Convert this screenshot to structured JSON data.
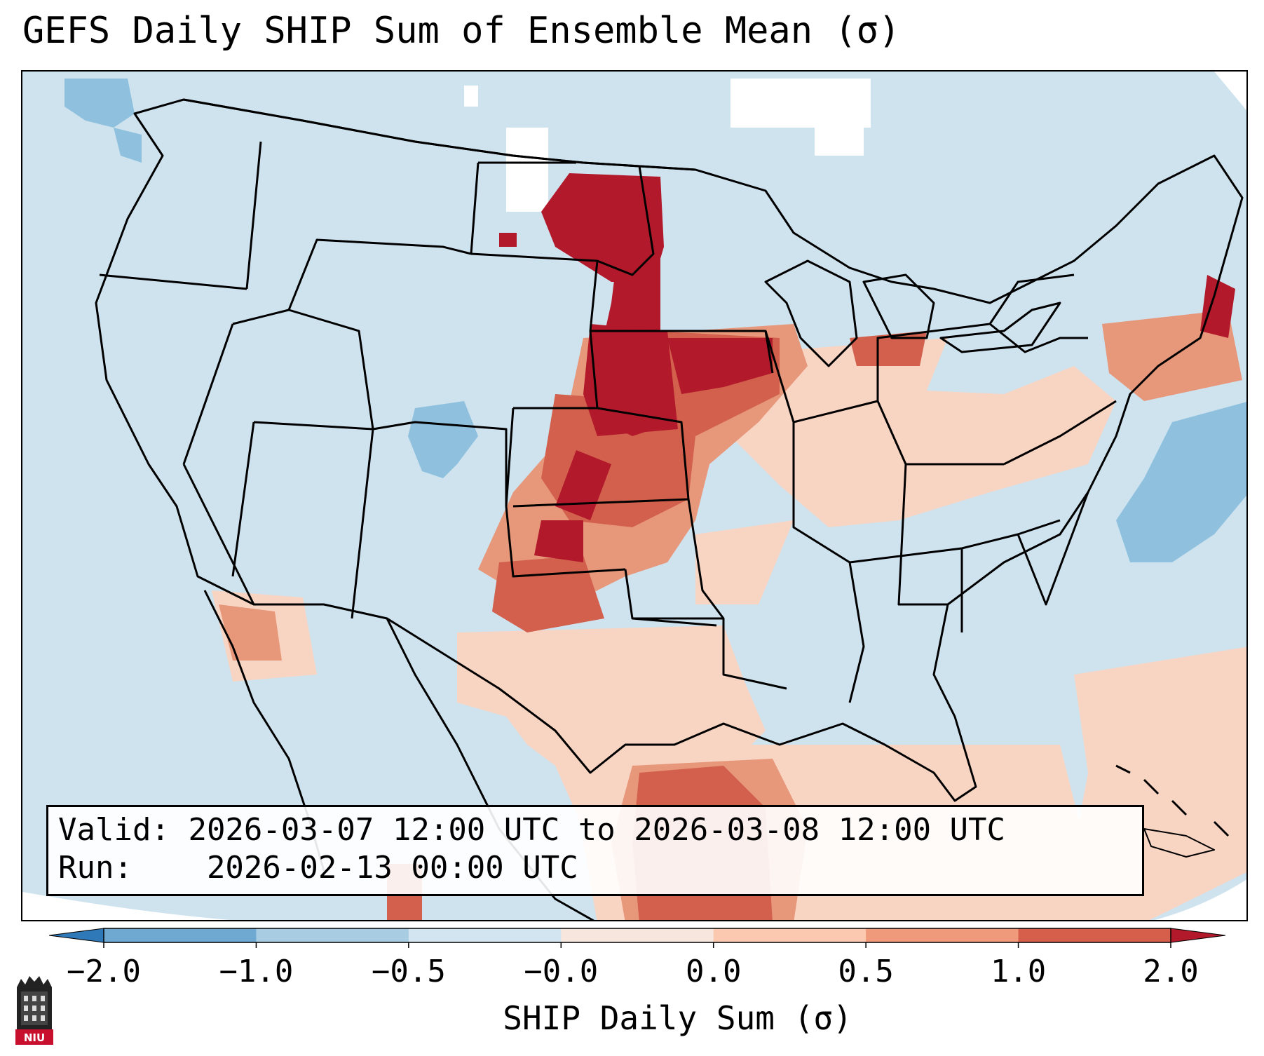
{
  "title": "GEFS Daily SHIP Sum of Ensemble Mean (σ)",
  "info": {
    "valid_label": "Valid:",
    "valid_value": "2026-03-07 12:00 UTC to 2026-03-08 12:00 UTC",
    "run_label": "Run:",
    "run_value": "2026-02-13 00:00 UTC"
  },
  "colorbar": {
    "label": "SHIP Daily Sum (σ)",
    "tick_labels": [
      "−2.0",
      "−1.0",
      "−0.5",
      "−0.0",
      "0.0",
      "0.5",
      "1.0",
      "2.0"
    ],
    "colors": [
      "#2f79b8",
      "#6fa9d2",
      "#a8cde3",
      "#d3e5f0",
      "#f7e6dd",
      "#fbc8b0",
      "#ef9a7a",
      "#d65f4c",
      "#b2192b"
    ],
    "extend": "both"
  },
  "logo": {
    "text": "NIU"
  },
  "map": {
    "background_color": "#cfe3ef",
    "outside_domain_color": "#ffffff",
    "anomaly_regions": [
      {
        "name": "dakotas-core",
        "level": "strong-positive",
        "color": "#b2192b"
      },
      {
        "name": "plains-corridor",
        "level": "strong-positive",
        "color": "#b2192b"
      },
      {
        "name": "iowa-core",
        "level": "strong-positive",
        "color": "#b2192b"
      },
      {
        "name": "oklahoma-core",
        "level": "strong-positive",
        "color": "#b2192b"
      },
      {
        "name": "kansas-moderate",
        "level": "positive",
        "color": "#d65f4c"
      },
      {
        "name": "gulf-coast-moderate",
        "level": "positive",
        "color": "#d65f4c"
      },
      {
        "name": "new-england-core",
        "level": "strong-positive",
        "color": "#b2192b"
      },
      {
        "name": "texas-weak",
        "level": "weak-positive",
        "color": "#f7d0bd"
      },
      {
        "name": "southeast-weak",
        "level": "weak-positive",
        "color": "#f7d0bd"
      },
      {
        "name": "gulf-weak",
        "level": "weak-positive",
        "color": "#f7d0bd"
      },
      {
        "name": "colorado-negative",
        "level": "negative",
        "color": "#8fc1de"
      },
      {
        "name": "atlantic-negative",
        "level": "negative",
        "color": "#8fc1de"
      },
      {
        "name": "pacific-nw-negative",
        "level": "negative",
        "color": "#8fc1de"
      }
    ]
  }
}
